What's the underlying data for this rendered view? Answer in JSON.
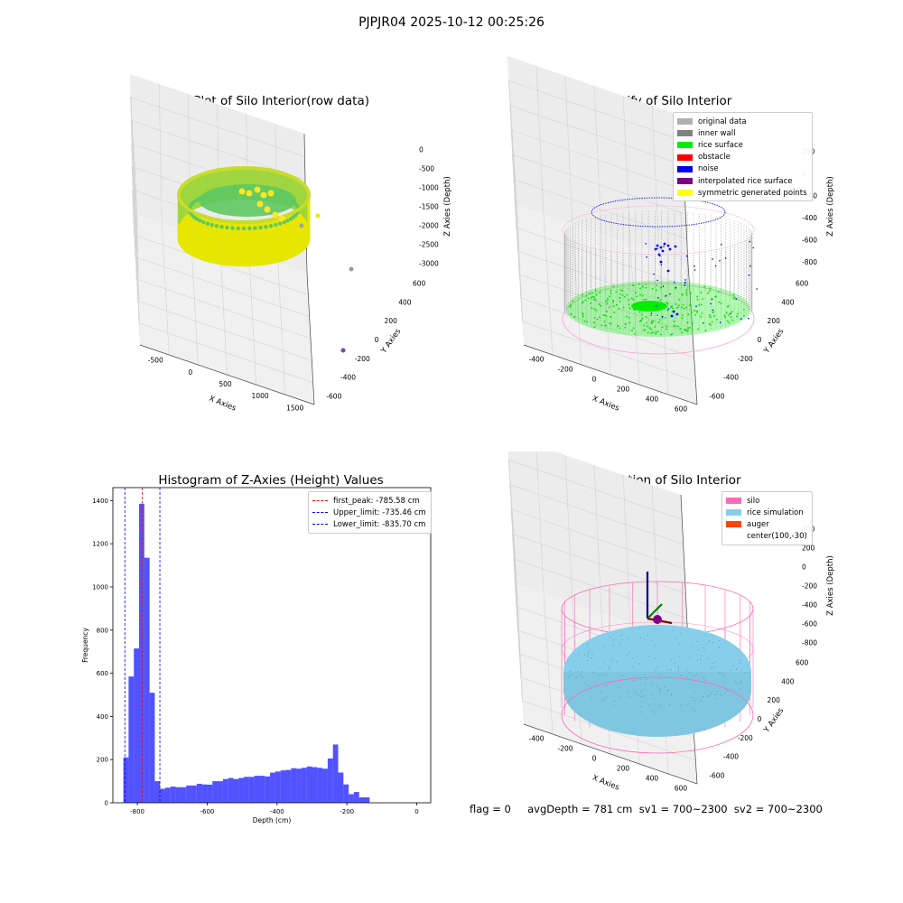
{
  "suptitle": "PJPJR04 2025-10-12 00:25:26",
  "footer": "flag = 0     avgDepth = 781 cm  sv1 = 700~2300  sv2 = 700~2300",
  "chart_data": [
    {
      "type": "scatter",
      "title": "3D Plot of Silo Interior(row data)",
      "xlabel": "X Axies",
      "ylabel": "Y Axies",
      "zlabel": "Z Axies (Depth)",
      "x_ticks": [
        "-500",
        "0",
        "500",
        "1000",
        "1500"
      ],
      "y_ticks": [
        "-600",
        "-400",
        "-200",
        "0",
        "200",
        "400",
        "600"
      ],
      "z_ticks": [
        "0",
        "-500",
        "-1000",
        "-1500",
        "-2000",
        "-2500",
        "-3000"
      ],
      "colormap": [
        "#440154",
        "#21918c",
        "#5ec962",
        "#fde725"
      ],
      "outliers": [
        {
          "x": 1400,
          "y": -600,
          "z": -2900
        },
        {
          "x": 1450,
          "y": 500,
          "z": -2150
        },
        {
          "x": 700,
          "y": 400,
          "z": -1100
        },
        {
          "x": 850,
          "y": 550,
          "z": -850
        }
      ]
    },
    {
      "type": "scatter",
      "title": "3D classify of Silo Interior",
      "zlabel": "Z Axies (Depth)",
      "xlabel": "X Axies",
      "ylabel": "Y Axies",
      "x_ticks": [
        "-400",
        "-200",
        "0",
        "200",
        "400",
        "600"
      ],
      "y_ticks": [
        "-600",
        "-400",
        "-200",
        "0",
        "200",
        "400",
        "600"
      ],
      "z_ticks": [
        "200",
        "0",
        "-200",
        "-400",
        "-600",
        "-800"
      ],
      "legend": [
        {
          "label": "original data",
          "color": "#b0b0b0"
        },
        {
          "label": "inner wall",
          "color": "#808080"
        },
        {
          "label": "rice surface",
          "color": "#00ee00"
        },
        {
          "label": "obstacle",
          "color": "#ff0000"
        },
        {
          "label": "noise",
          "color": "#0000ee"
        },
        {
          "label": "interpolated rice surface",
          "color": "#800080"
        },
        {
          "label": "symmetric generated points",
          "color": "#ffff00"
        }
      ]
    },
    {
      "type": "bar",
      "title": "Histogram of Z-Axies (Height) Values",
      "xlabel": "Depth (cm)",
      "ylabel": "Frequency",
      "xlim": [
        -870,
        40
      ],
      "ylim": [
        0,
        1460
      ],
      "x_ticks": [
        -800,
        -600,
        -400,
        -200,
        0
      ],
      "y_ticks": [
        0,
        200,
        400,
        600,
        800,
        1000,
        1200,
        1400
      ],
      "bin_start": -840,
      "bin_width": 15,
      "color": "#0000ff",
      "values": [
        210,
        585,
        715,
        1385,
        1135,
        510,
        100,
        65,
        70,
        75,
        72,
        72,
        80,
        80,
        88,
        85,
        84,
        100,
        100,
        110,
        115,
        110,
        115,
        120,
        120,
        125,
        125,
        122,
        140,
        145,
        150,
        152,
        160,
        158,
        162,
        168,
        165,
        162,
        158,
        205,
        270,
        140,
        85,
        40,
        50,
        25,
        25
      ],
      "vlines": [
        {
          "label": "first_peak: -785.58 cm",
          "x": -785.58,
          "color": "#ff0000"
        },
        {
          "label": "Upper_limit: -735.46 cm",
          "x": -735.46,
          "color": "#0000ff"
        },
        {
          "label": "Lower_limit: -835.70 cm",
          "x": -835.7,
          "color": "#0000ff"
        }
      ]
    },
    {
      "type": "scatter",
      "title": "3D simulation of Silo Interior",
      "zlabel": "Z Axies (Depth)",
      "xlabel": "X Axies",
      "ylabel": "Y Axies",
      "x_ticks": [
        "-400",
        "-200",
        "0",
        "200",
        "400",
        "600"
      ],
      "y_ticks": [
        "-600",
        "-400",
        "-200",
        "0",
        "200",
        "400",
        "600"
      ],
      "z_ticks": [
        "400",
        "200",
        "0",
        "-200",
        "-400",
        "-600",
        "-800"
      ],
      "legend": [
        {
          "label": "silo",
          "color": "#ff69b4"
        },
        {
          "label": "rice simulation",
          "color": "#87ceeb"
        },
        {
          "label": "auger",
          "color": "#ff4500"
        },
        {
          "label": "center(100,-30)",
          "color": ""
        }
      ]
    }
  ]
}
